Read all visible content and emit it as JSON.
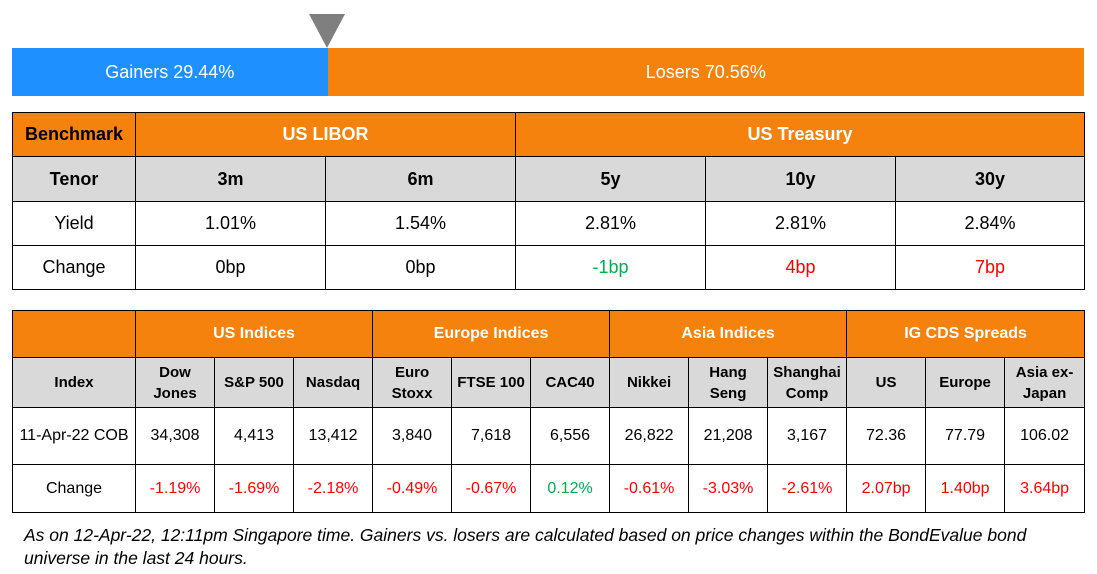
{
  "gainers_losers": {
    "gainers_label": "Gainers 29.44%",
    "losers_label": "Losers 70.56%",
    "gainers_pct": 29.44,
    "losers_pct": 70.56,
    "gainers_color": "#1e90ff",
    "losers_color": "#f5820c"
  },
  "rates": {
    "benchmark_label": "Benchmark",
    "libor_label": "US LIBOR",
    "treasury_label": "US Treasury",
    "tenor_label": "Tenor",
    "tenors": [
      "3m",
      "6m",
      "5y",
      "10y",
      "30y"
    ],
    "yield_label": "Yield",
    "yields": [
      "1.01%",
      "1.54%",
      "2.81%",
      "2.81%",
      "2.84%"
    ],
    "change_label": "Change",
    "changes": [
      "0bp",
      "0bp",
      "-1bp",
      "4bp",
      "7bp"
    ]
  },
  "indices": {
    "group_us": "US Indices",
    "group_europe": "Europe Indices",
    "group_asia": "Asia Indices",
    "group_cds": "IG CDS Spreads",
    "index_label": "Index",
    "columns": [
      [
        "Dow",
        "Jones"
      ],
      [
        "S&P 500"
      ],
      [
        "Nasdaq"
      ],
      [
        "Euro",
        "Stoxx"
      ],
      [
        "FTSE 100"
      ],
      [
        "CAC40"
      ],
      [
        "Nikkei"
      ],
      [
        "Hang",
        "Seng"
      ],
      [
        "Shanghai",
        "Comp"
      ],
      [
        "US"
      ],
      [
        "Europe"
      ],
      [
        "Asia ex-",
        "Japan"
      ]
    ],
    "date_label": "11-Apr-22 COB",
    "values": [
      "34,308",
      "4,413",
      "13,412",
      "3,840",
      "7,618",
      "6,556",
      "26,822",
      "21,208",
      "3,167",
      "72.36",
      "77.79",
      "106.02"
    ],
    "change_label": "Change",
    "changes": [
      "-1.19%",
      "-1.69%",
      "-2.18%",
      "-0.49%",
      "-0.67%",
      "0.12%",
      "-0.61%",
      "-3.03%",
      "-2.61%",
      "2.07bp",
      "1.40bp",
      "3.64bp"
    ]
  },
  "footnote": "As on 12-Apr-22, 12:11pm Singapore time. Gainers vs. losers are calculated based on price changes within the BondEvalue bond universe in the last 24 hours."
}
